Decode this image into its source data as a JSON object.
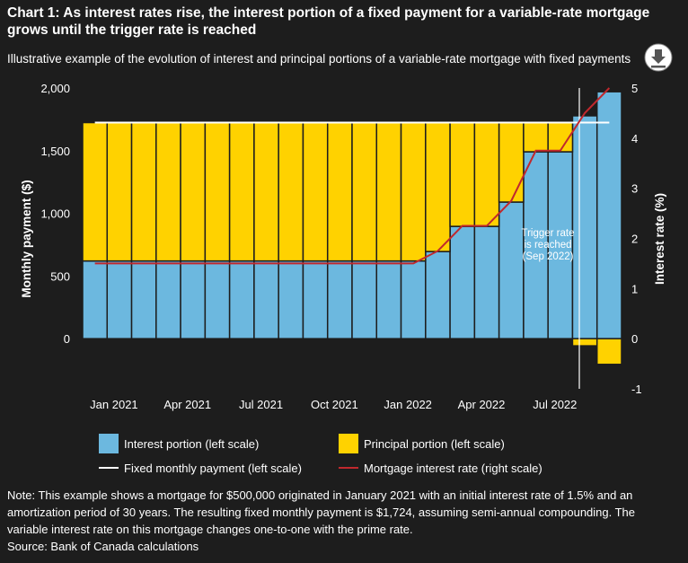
{
  "chart_data": {
    "type": "combo",
    "title_lines": [
      "Chart 1: As interest rates rise, the interest portion of a fixed payment for a variable-rate mortgage",
      "grows until the trigger rate is reached"
    ],
    "subtitle": "Illustrative example of the evolution of interest and principal portions of a variable-rate mortgage with fixed payments",
    "y_label": "Monthly payment ($)",
    "y2_label": "Interest rate (%)",
    "categories": [
      null,
      "Jan 2021",
      null,
      null,
      "Apr 2021",
      null,
      null,
      "Jul 2021",
      null,
      null,
      "Oct 2021",
      null,
      null,
      "Jan 2022",
      null,
      null,
      "Apr 2022",
      null,
      null,
      "Jul 2022",
      null,
      null
    ],
    "ylim": [
      -400,
      2000
    ],
    "yticks": [
      0,
      500,
      {
        "value": 1000,
        "label": "1,000"
      },
      {
        "value": 1500,
        "label": "1,500"
      },
      {
        "value": 2000,
        "label": "2,000"
      }
    ],
    "y2lim": [
      -1,
      5
    ],
    "y2ticks": [
      -1,
      0,
      1,
      2,
      3,
      4,
      5
    ],
    "series": [
      {
        "name": "Interest portion (left scale)",
        "type": "bar",
        "color": "#6cb8df",
        "values": [
          620,
          620,
          620,
          620,
          620,
          620,
          620,
          620,
          620,
          620,
          620,
          620,
          620,
          620,
          695,
          896,
          896,
          1090,
          1491,
          1491,
          1778,
          1970
        ]
      },
      {
        "name": "Principal portion (left scale)",
        "type": "bar",
        "color": "#ffd200",
        "values": [
          1104,
          1104,
          1104,
          1104,
          1104,
          1104,
          1104,
          1104,
          1104,
          1104,
          1104,
          1104,
          1104,
          1104,
          1029,
          828,
          828,
          634,
          233,
          233,
          -57,
          -205
        ]
      },
      {
        "name": "Fixed monthly payment (left scale)",
        "type": "line",
        "color": "#ffffff",
        "values": [
          1724,
          1724,
          1724,
          1724,
          1724,
          1724,
          1724,
          1724,
          1724,
          1724,
          1724,
          1724,
          1724,
          1724,
          1724,
          1724,
          1724,
          1724,
          1724,
          1724,
          1724,
          1724
        ]
      },
      {
        "name": "Mortgage interest rate (right scale)",
        "type": "line",
        "color": "#c0282d",
        "axis": "y2",
        "values": [
          1.5,
          1.5,
          1.5,
          1.5,
          1.5,
          1.5,
          1.5,
          1.5,
          1.5,
          1.5,
          1.5,
          1.5,
          1.5,
          1.5,
          1.75,
          2.25,
          2.25,
          2.75,
          3.75,
          3.75,
          4.5,
          5
        ]
      }
    ],
    "annotation_lines": [
      "Trigger rate",
      "is reached",
      "(Sep 2022)"
    ],
    "note": "Note: This example shows a mortgage for $500,000 originated in January 2021 with an initial interest rate of 1.5% and an amortization period of 30 years. The resulting fixed monthly payment is $1,724, assuming semi-annual compounding. The variable interest rate on this mortgage changes one-to-one with the prime rate.",
    "source": "Source: Bank of Canada calculations"
  }
}
